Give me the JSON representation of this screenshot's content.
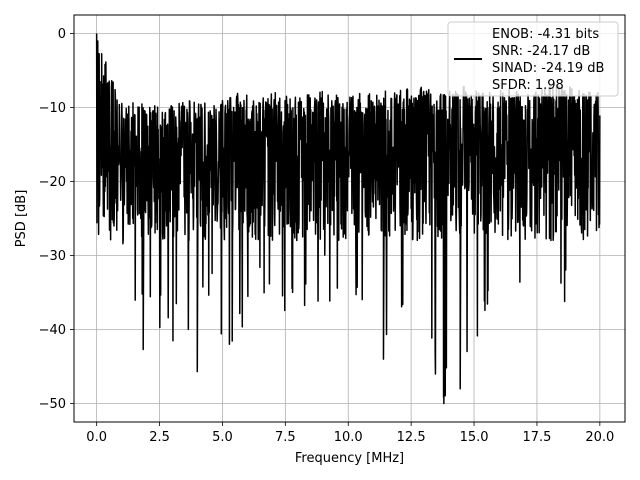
{
  "chart_data": {
    "type": "line",
    "title": "",
    "xlabel": "Frequency [MHz]",
    "ylabel": "PSD [dB]",
    "xlim": [
      -0.9,
      21.0
    ],
    "ylim": [
      -52.5,
      2.5
    ],
    "x_ticks": [
      0.0,
      2.5,
      5.0,
      7.5,
      10.0,
      12.5,
      15.0,
      17.5,
      20.0
    ],
    "x_tick_labels": [
      "0.0",
      "2.5",
      "5.0",
      "7.5",
      "10.0",
      "12.5",
      "15.0",
      "17.5",
      "20.0"
    ],
    "y_ticks": [
      0,
      -10,
      -20,
      -30,
      -40,
      -50
    ],
    "y_tick_labels": [
      "0",
      "−10",
      "−20",
      "−30",
      "−40",
      "−50"
    ],
    "grid": true,
    "legend_position": "top-right",
    "legend_entries": [
      "ENOB: -4.31 bits",
      "SNR: -24.17 dB",
      "SINAD: -24.19 dB",
      "SFDR: 1.98"
    ],
    "series_color": "#000000",
    "series": [
      {
        "name": "",
        "x_start": 0.0,
        "x_end": 20.0,
        "envelope_upper": [
          0.0,
          -9.0,
          -9.5,
          -10.0,
          -9.0,
          -9.5,
          -8.0,
          -8.0,
          -8.0,
          -8.5,
          -7.5,
          -8.0,
          -8.0,
          -7.5,
          -7.0,
          -8.0,
          -7.0,
          -8.0,
          -7.0,
          -8.0,
          -6.5,
          -7.5,
          -8.0
        ],
        "envelope_lower": [
          -16.0,
          -33.0,
          -39.0,
          -41.0,
          -42.7,
          -38.0,
          -45.7,
          -36.0,
          -39.0,
          -40.6,
          -35.0,
          -42.0,
          -36.0,
          -44.0,
          -38.0,
          -50.0,
          -48.0,
          -39.0,
          -40.0,
          -36.0,
          -38.0,
          -35.0,
          -25.0
        ],
        "typical_range": [
          -28.0,
          -9.0
        ],
        "notable_minima": [
          {
            "x": 1.85,
            "y": -42.7
          },
          {
            "x": 4.0,
            "y": -45.7
          },
          {
            "x": 11.4,
            "y": -44.0
          },
          {
            "x": 13.8,
            "y": -50.0
          },
          {
            "x": 14.45,
            "y": -48.0
          }
        ]
      }
    ]
  }
}
